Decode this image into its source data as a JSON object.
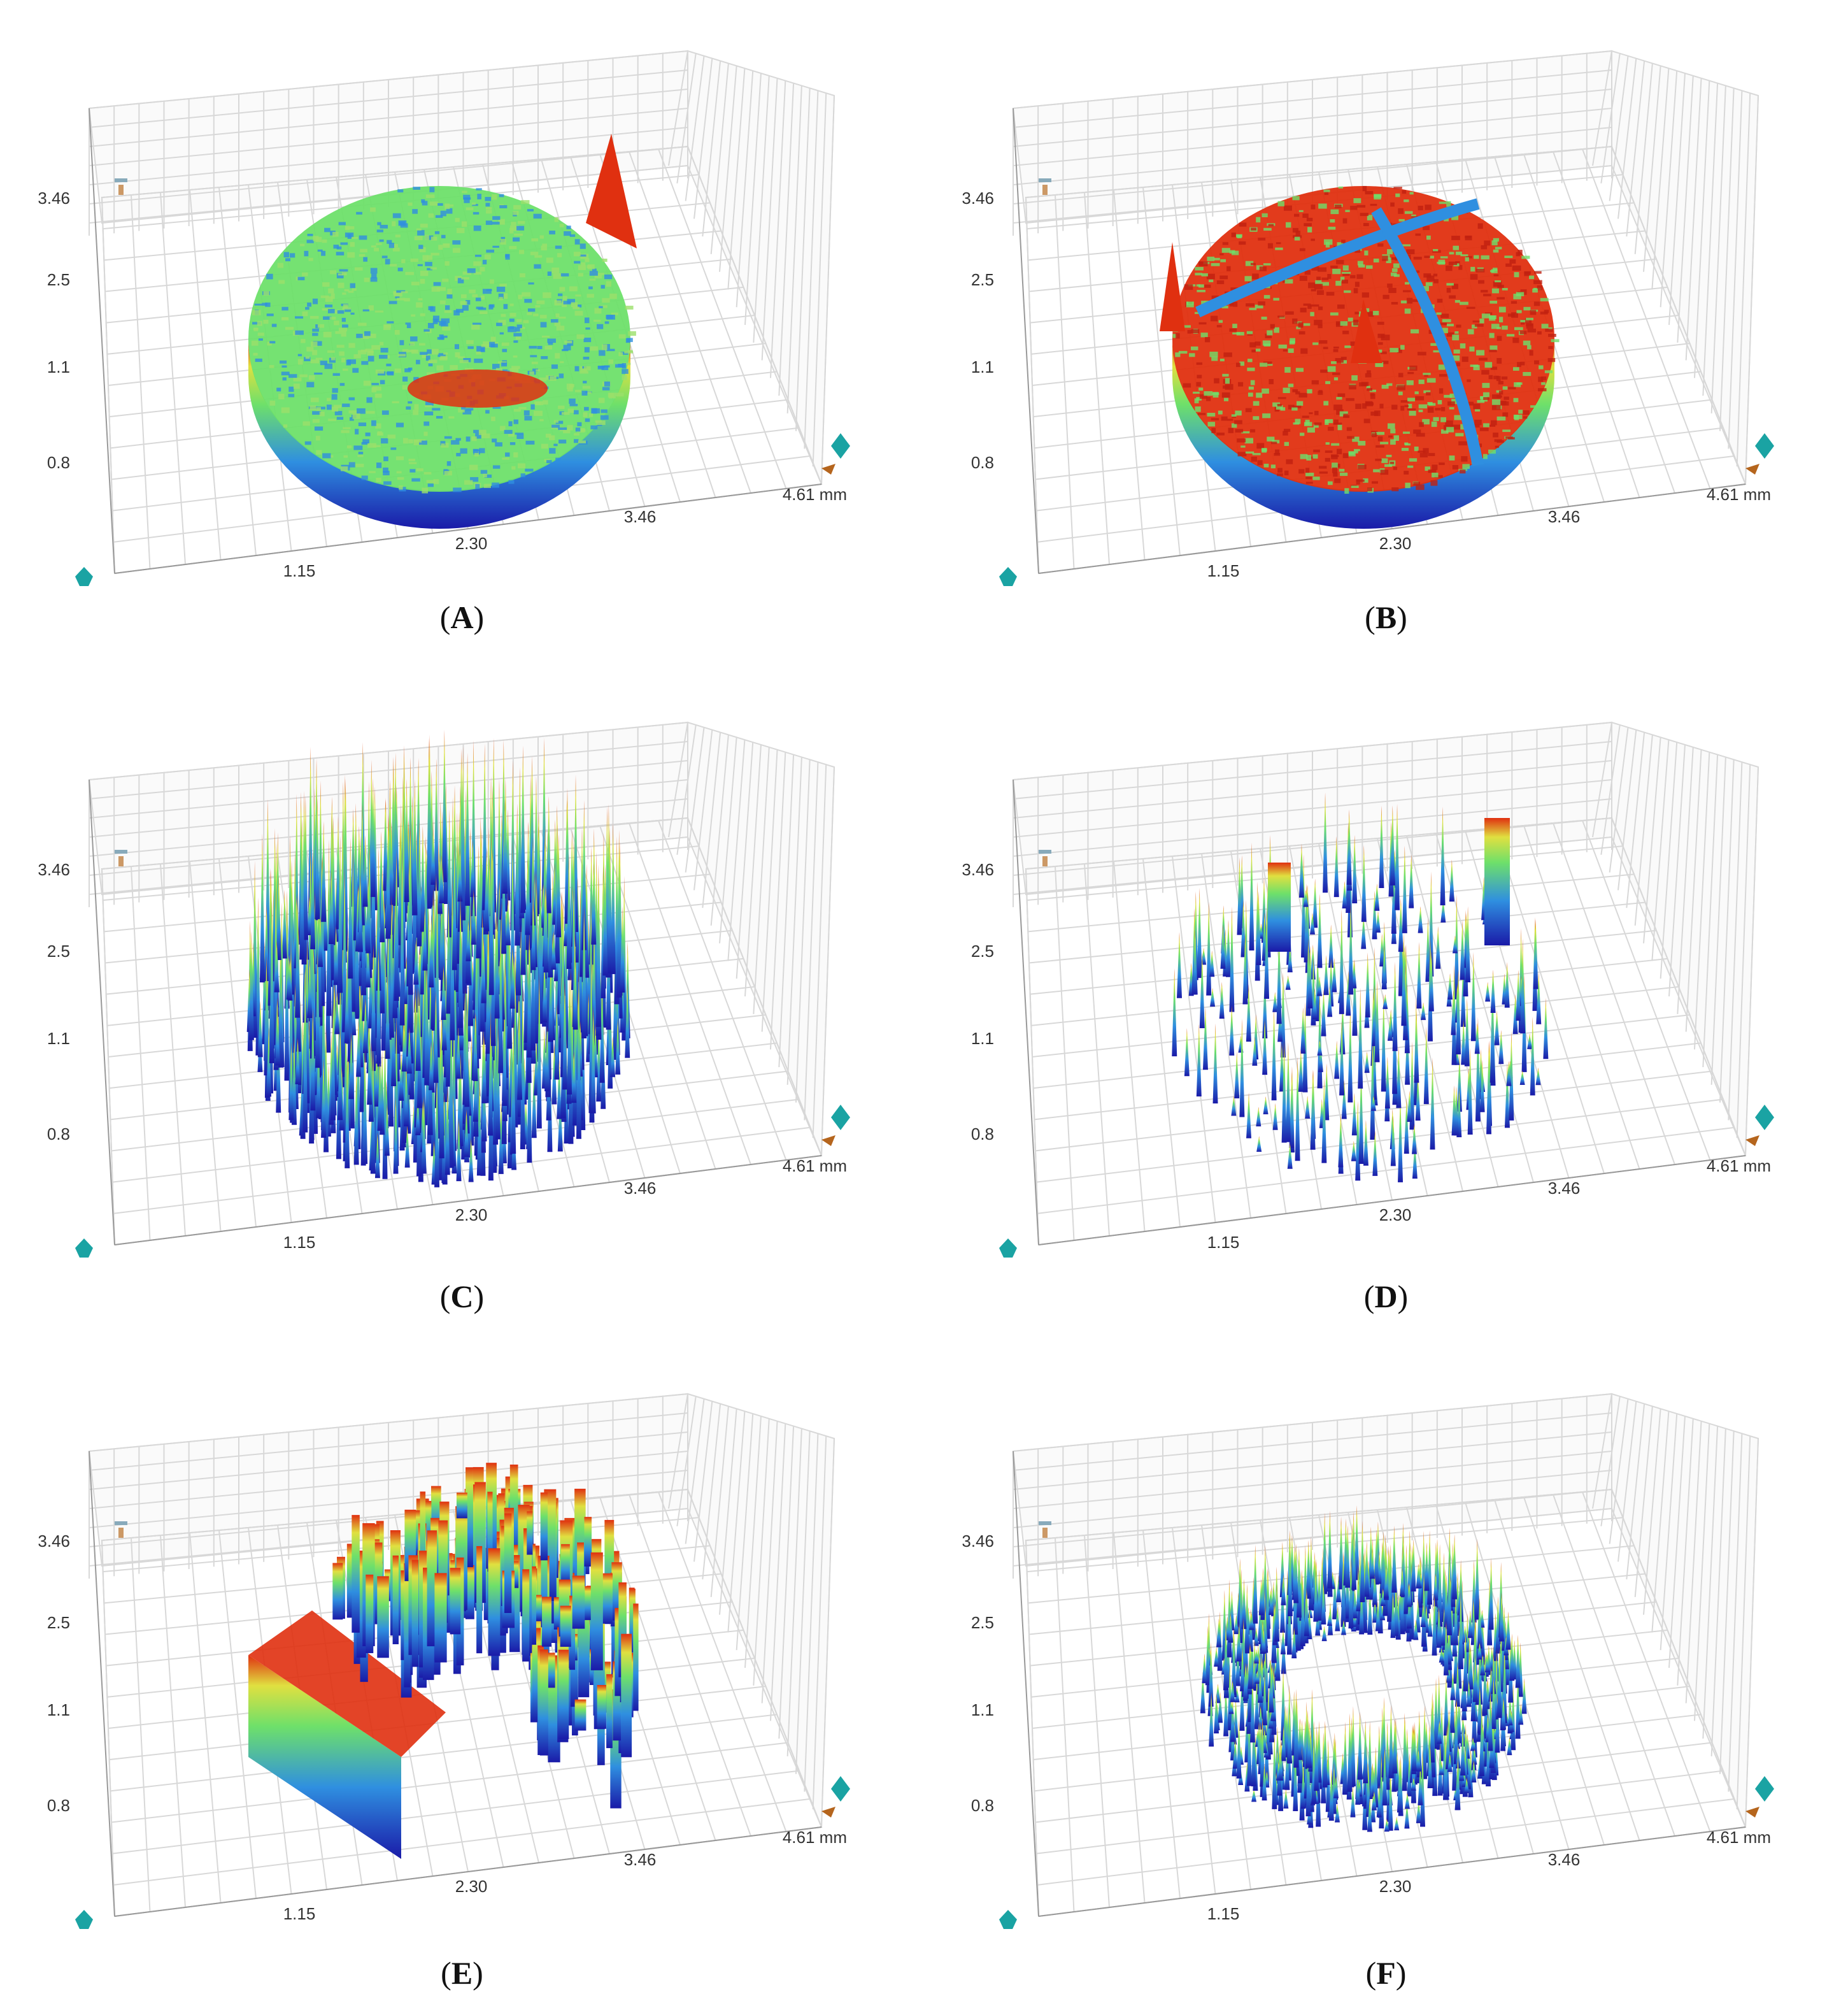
{
  "figure": {
    "panels": [
      {
        "id": "A",
        "caption_open": "(",
        "caption_letter": "A",
        "caption_close": ")",
        "z_ticks": [
          "3.46",
          "2.5",
          "1.1",
          "0.8"
        ],
        "x_ticks": [
          "1.15",
          "2.30",
          "3.46"
        ],
        "y_end": "4.61 mm"
      },
      {
        "id": "B",
        "caption_open": "(",
        "caption_letter": "B",
        "caption_close": ")",
        "z_ticks": [
          "3.46",
          "2.5",
          "1.1",
          "0.8"
        ],
        "x_ticks": [
          "1.15",
          "2.30",
          "3.46"
        ],
        "y_end": "4.61 mm"
      },
      {
        "id": "C",
        "caption_open": "(",
        "caption_letter": "C",
        "caption_close": ")",
        "z_ticks": [
          "3.46",
          "2.5",
          "1.1",
          "0.8"
        ],
        "x_ticks": [
          "1.15",
          "2.30",
          "3.46"
        ],
        "y_end": "4.61 mm"
      },
      {
        "id": "D",
        "caption_open": "(",
        "caption_letter": "D",
        "caption_close": ")",
        "z_ticks": [
          "3.46",
          "2.5",
          "1.1",
          "0.8"
        ],
        "x_ticks": [
          "1.15",
          "2.30",
          "3.46"
        ],
        "y_end": "4.61 mm"
      },
      {
        "id": "E",
        "caption_open": "(",
        "caption_letter": "E",
        "caption_close": ")",
        "z_ticks": [
          "3.46",
          "2.5",
          "1.1",
          "0.8"
        ],
        "x_ticks": [
          "1.15",
          "2.30",
          "3.46"
        ],
        "y_end": "4.61 mm"
      },
      {
        "id": "F",
        "caption_open": "(",
        "caption_letter": "F",
        "caption_close": ")",
        "z_ticks": [
          "3.46",
          "2.5",
          "1.1",
          "0.8"
        ],
        "x_ticks": [
          "1.15",
          "2.30",
          "3.46"
        ],
        "y_end": "4.61 mm"
      }
    ],
    "colors": {
      "low": "#1a1aa8",
      "mid_low": "#2f8fe0",
      "mid": "#6ee06a",
      "mid_high": "#e0e040",
      "high": "#e03010",
      "grid": "#d8d8d8",
      "widget_teal": "#1aa3a3",
      "widget_brown": "#b5651d"
    },
    "icons": [
      "navigation-cube-icon",
      "rotate-arrows-icon",
      "axis-arrow-icon"
    ]
  }
}
